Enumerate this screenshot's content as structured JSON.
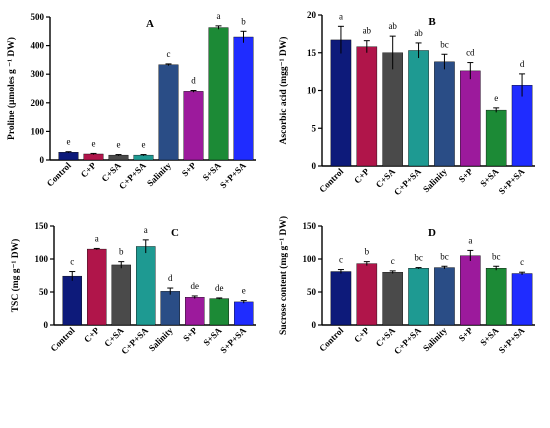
{
  "colors": {
    "Control": "#0d1a7a",
    "C+P": "#b0154a",
    "C+SA": "#4a4a4a",
    "C+P+SA": "#1e9a92",
    "Salinity": "#2a4d86",
    "S+P": "#9c1a9c",
    "S+SA": "#1c8a36",
    "S+P+SA": "#1f2cff"
  },
  "chart_data": [
    {
      "type": "bar",
      "panel": "A",
      "ylabel": "Proline (µmoles g ⁻¹ DW)",
      "ylim": [
        0,
        500
      ],
      "yticks": [
        "0",
        "100",
        "200",
        "300",
        "400",
        "500"
      ],
      "categories": [
        "Control",
        "C+P",
        "C+SA",
        "C+P+SA",
        "Salinity",
        "S+P",
        "S+SA",
        "S+P+SA"
      ],
      "values": [
        27,
        21,
        17,
        17,
        333,
        240,
        463,
        430
      ],
      "errors": [
        2,
        2,
        2,
        2,
        3,
        3,
        6,
        20
      ],
      "letters": [
        "e",
        "e",
        "e",
        "e",
        "c",
        "d",
        "a",
        "b"
      ]
    },
    {
      "type": "bar",
      "panel": "B",
      "ylabel": "Ascorbic acid (mgg⁻¹ DW)",
      "ylim": [
        0,
        20
      ],
      "yticks": [
        "0",
        "5",
        "10",
        "15",
        "20"
      ],
      "categories": [
        "Control",
        "C+P",
        "C+SA",
        "C+P+SA",
        "Salinity",
        "S+P",
        "S+SA",
        "S+P+SA"
      ],
      "values": [
        16.7,
        15.8,
        15.0,
        15.3,
        13.8,
        12.6,
        7.4,
        10.7
      ],
      "errors": [
        1.8,
        0.8,
        2.2,
        1.0,
        1.0,
        1.1,
        0.3,
        1.5
      ],
      "letters": [
        "a",
        "ab",
        "ab",
        "ab",
        "bc",
        "cd",
        "e",
        "d"
      ]
    },
    {
      "type": "bar",
      "panel": "C",
      "ylabel": "TSC (mg g⁻¹ DW)",
      "ylim": [
        0,
        150
      ],
      "yticks": [
        "0",
        "50",
        "100",
        "150"
      ],
      "categories": [
        "Control",
        "C+P",
        "C+SA",
        "C+P+SA",
        "Salinity",
        "S+P",
        "S+SA",
        "S+P+SA"
      ],
      "values": [
        74,
        115,
        91,
        119,
        51,
        42,
        40,
        35
      ],
      "errors": [
        7,
        1,
        5,
        10,
        5,
        2,
        1,
        2
      ],
      "letters": [
        "c",
        "a",
        "b",
        "a",
        "d",
        "de",
        "de",
        "e"
      ]
    },
    {
      "type": "bar",
      "panel": "D",
      "ylabel": "Sucrose content (mg g⁻¹ DW)",
      "ylim": [
        0,
        150
      ],
      "yticks": [
        "0",
        "50",
        "100",
        "150"
      ],
      "categories": [
        "Control",
        "C+P",
        "C+SA",
        "C+P+SA",
        "Salinity",
        "S+P",
        "S+SA",
        "S+P+SA"
      ],
      "values": [
        81,
        93,
        80,
        86,
        87,
        105,
        86,
        78
      ],
      "errors": [
        3,
        3,
        2,
        1,
        2,
        8,
        3,
        2
      ],
      "letters": [
        "c",
        "b",
        "c",
        "bc",
        "bc",
        "a",
        "bc",
        "c"
      ]
    }
  ]
}
